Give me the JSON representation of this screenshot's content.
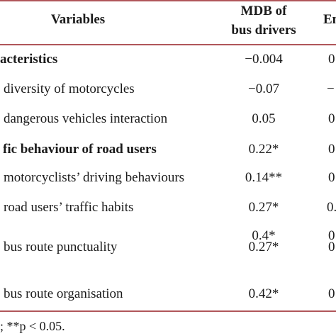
{
  "header": {
    "variables": "Variables",
    "col_mdb_line1": "MDB of",
    "col_mdb_line2": "bus drivers",
    "col_partial": "En"
  },
  "rows": [
    {
      "label": "acteristics",
      "mdb": "−0.004",
      "partial": "0",
      "bold": true
    },
    {
      "label": "diversity of motorcycles",
      "mdb": "−0.07",
      "partial": "−",
      "bold": false
    },
    {
      "label": "dangerous vehicles interaction",
      "mdb": "0.05",
      "partial": "0",
      "bold": false
    },
    {
      "label": "fic behaviour of road users",
      "mdb": "0.22*",
      "partial": "0",
      "bold": true
    },
    {
      "label": "motorcyclists’ driving behaviours",
      "mdb": "0.14**",
      "partial": "0",
      "bold": false
    },
    {
      "label": "road users’ traffic habits",
      "mdb": "0.27*",
      "partial": "0.",
      "bold": false
    },
    {
      "label": "",
      "mdb": "0.4*",
      "partial": "0",
      "bold": false
    },
    {
      "label": "bus route punctuality",
      "mdb": "0.27*",
      "partial": "0",
      "bold": false
    },
    {
      "label": "bus route organisation",
      "mdb": "0.42*",
      "partial": "0",
      "bold": false
    }
  ],
  "footnote": "; **p < 0.05."
}
